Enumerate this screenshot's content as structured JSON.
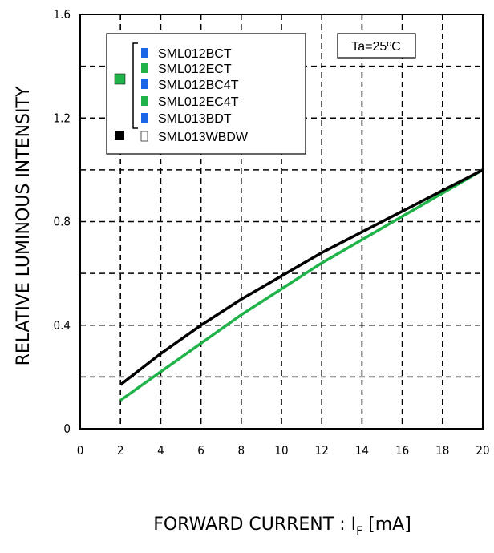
{
  "chart_data": {
    "type": "line",
    "xlabel_main": "FORWARD CURRENT : I",
    "xlabel_sub": "F",
    "xlabel_tail": " [mA]",
    "ylabel": "RELATIVE LUMINOUS INTENSITY",
    "xlim": [
      0,
      20
    ],
    "ylim": [
      0,
      1.6
    ],
    "x_ticks": [
      "0",
      "2",
      "4",
      "6",
      "8",
      "10",
      "12",
      "14",
      "16",
      "18",
      "20"
    ],
    "y_ticks": [
      "0",
      "0.4",
      "0.8",
      "1.2",
      "1.6"
    ],
    "grid": true,
    "condition": "Ta=25ºC",
    "legend": {
      "placement": "top-left",
      "group_color": "#1fb34a",
      "group_items": [
        {
          "label": "SML012BCT",
          "color": "#1a66e6"
        },
        {
          "label": "SML012ECT",
          "color": "#1fb34a"
        },
        {
          "label": "SML012BC4T",
          "color": "#1a66e6"
        },
        {
          "label": "SML012EC4T",
          "color": "#1fb34a"
        },
        {
          "label": "SML013BDT",
          "color": "#1a66e6"
        }
      ],
      "solo_item": {
        "label": "SML013WBDW",
        "color": "#ffffff",
        "group_color": "#000000"
      }
    },
    "series": [
      {
        "color": "#1fb34a",
        "x": [
          2,
          4,
          6,
          8,
          10,
          12,
          14,
          16,
          18,
          20
        ],
        "y": [
          0.11,
          0.22,
          0.33,
          0.44,
          0.54,
          0.64,
          0.73,
          0.82,
          0.91,
          1.0
        ]
      },
      {
        "color": "#000000",
        "x": [
          2,
          4,
          6,
          8,
          10,
          12,
          14,
          16,
          18,
          20
        ],
        "y": [
          0.17,
          0.29,
          0.4,
          0.5,
          0.59,
          0.68,
          0.76,
          0.84,
          0.92,
          1.0
        ]
      }
    ]
  }
}
